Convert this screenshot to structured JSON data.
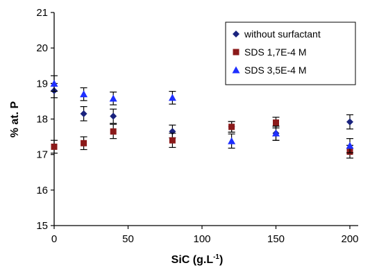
{
  "chart_data": {
    "type": "scatter",
    "ylabel": "% at. P",
    "xlabel_main": "SiC (g.L",
    "xlabel_sup": "-1",
    "xlabel_close": ")",
    "xlim": [
      0,
      200
    ],
    "ylim": [
      15,
      21
    ],
    "x_ticks": [
      "0",
      "50",
      "100",
      "150",
      "200"
    ],
    "y_ticks": [
      "15",
      "16",
      "17",
      "18",
      "19",
      "20",
      "21"
    ],
    "grid": false,
    "legend_position": "top-right",
    "series": [
      {
        "name": "without surfactant",
        "marker": "diamond",
        "color": "#1a237e",
        "points": [
          {
            "x": 0,
            "y": 18.8,
            "err": 0.2
          },
          {
            "x": 20,
            "y": 18.15,
            "err": 0.2
          },
          {
            "x": 40,
            "y": 18.08,
            "err": 0.2
          },
          {
            "x": 80,
            "y": 17.65,
            "err": 0.18
          },
          {
            "x": 120,
            "y": 17.78,
            "err": 0.15
          },
          {
            "x": 150,
            "y": 17.6,
            "err": 0.2
          },
          {
            "x": 200,
            "y": 17.92,
            "err": 0.2
          }
        ]
      },
      {
        "name": "SDS 1,7E-4 M",
        "marker": "square",
        "color": "#8b1a1a",
        "points": [
          {
            "x": 0,
            "y": 17.22,
            "err": 0.18
          },
          {
            "x": 20,
            "y": 17.32,
            "err": 0.18
          },
          {
            "x": 40,
            "y": 17.65,
            "err": 0.2
          },
          {
            "x": 80,
            "y": 17.4,
            "err": 0.2
          },
          {
            "x": 120,
            "y": 17.78,
            "err": 0.15
          },
          {
            "x": 150,
            "y": 17.9,
            "err": 0.15
          },
          {
            "x": 200,
            "y": 17.08,
            "err": 0.18
          }
        ]
      },
      {
        "name": "SDS 3,5E-4 M",
        "marker": "triangle",
        "color": "#1e2fff",
        "points": [
          {
            "x": 0,
            "y": 19.0,
            "err": 0.22
          },
          {
            "x": 20,
            "y": 18.7,
            "err": 0.18
          },
          {
            "x": 40,
            "y": 18.58,
            "err": 0.18
          },
          {
            "x": 80,
            "y": 18.6,
            "err": 0.18
          },
          {
            "x": 120,
            "y": 17.38,
            "err": 0.2
          },
          {
            "x": 150,
            "y": 17.6,
            "err": 0.2
          },
          {
            "x": 200,
            "y": 17.25,
            "err": 0.2
          }
        ]
      }
    ]
  }
}
